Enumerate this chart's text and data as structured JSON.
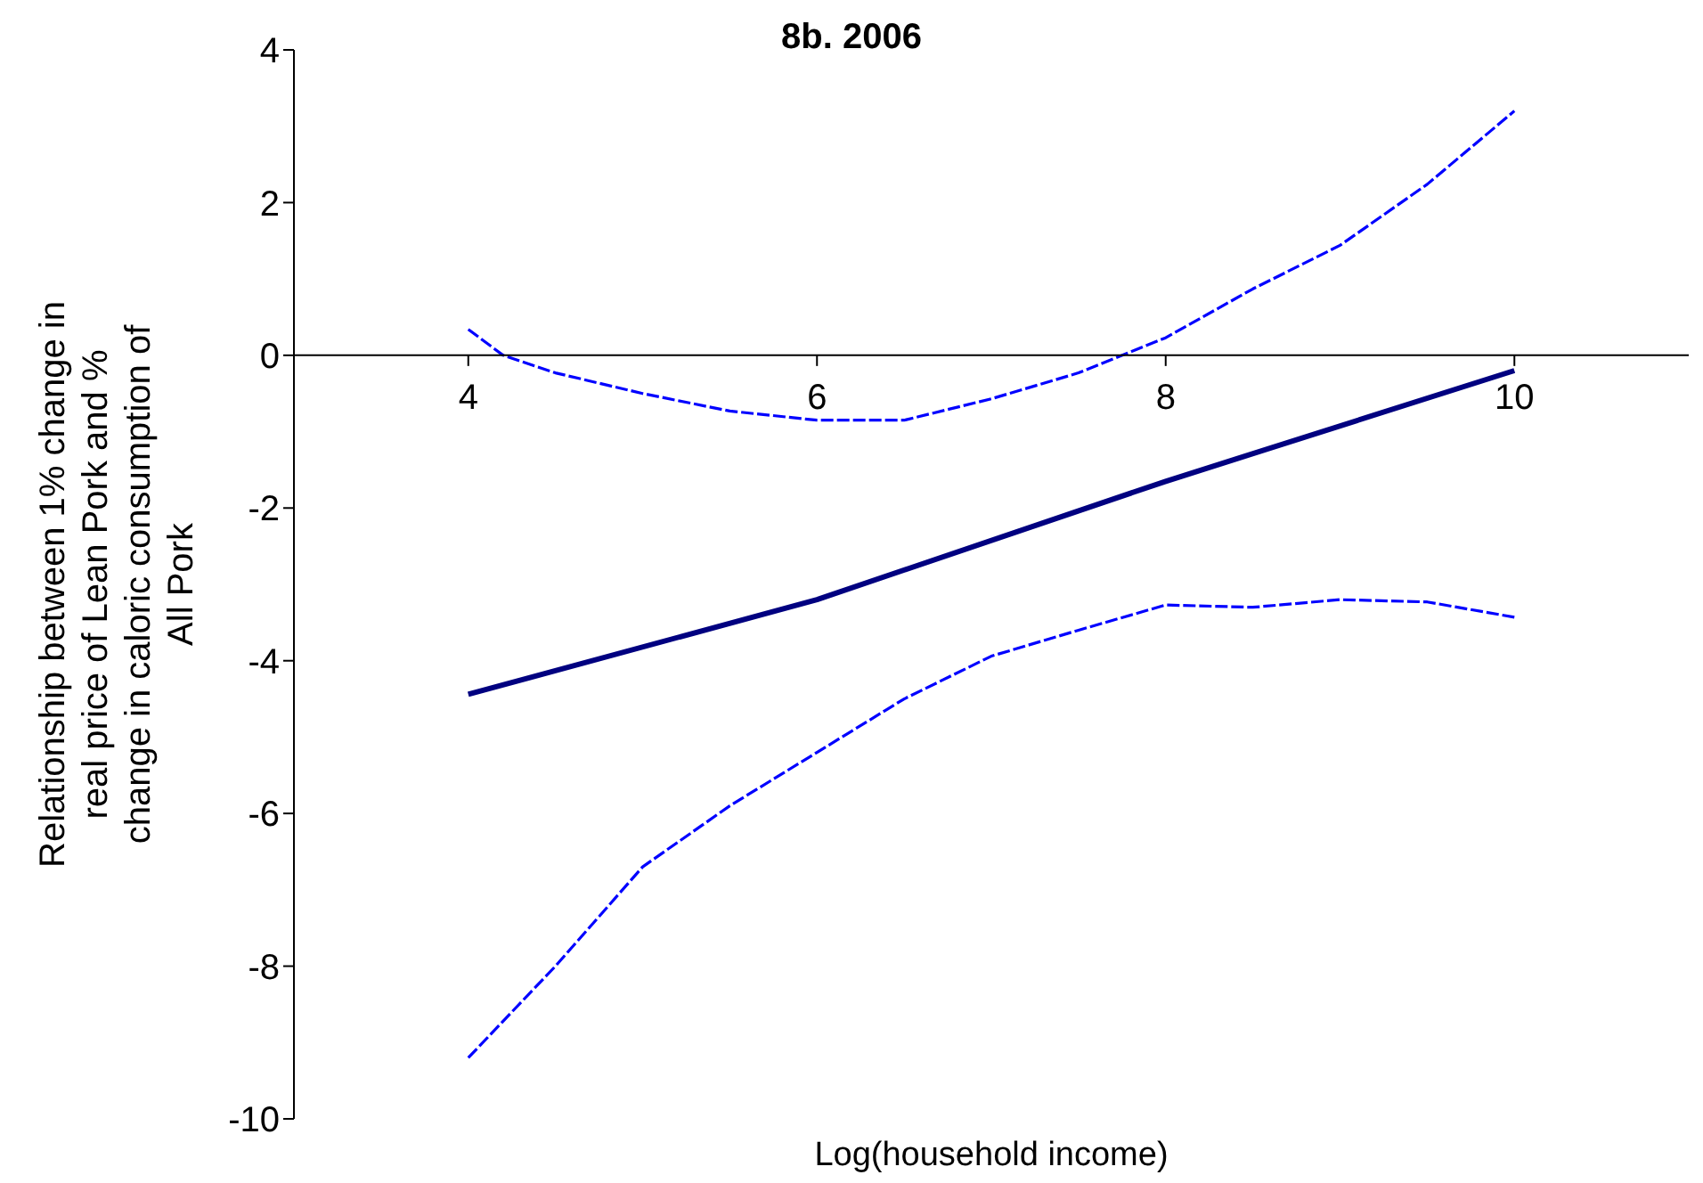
{
  "chart_data": {
    "type": "line",
    "title": "8b. 2006",
    "xlabel": "Log(household income)",
    "ylabel": "Relationship between 1% change in real price of Lean Pork and % change in caloric consumption of All Pork",
    "xlim": [
      3,
      11
    ],
    "xticks": [
      4,
      6,
      8,
      10
    ],
    "ylim": [
      -10,
      4
    ],
    "yticks": [
      -10,
      -8,
      -6,
      -4,
      -2,
      0,
      2,
      4
    ],
    "grid": false,
    "legend": false,
    "marker": "none",
    "series": [
      {
        "color": "#000080",
        "line_style": "solid",
        "x": [
          4,
          6,
          8,
          10
        ],
        "values": [
          -4.44,
          -3.2,
          -1.65,
          -0.2
        ]
      },
      {
        "color": "#0000ff",
        "line_style": "dashed",
        "x": [
          4,
          4.2,
          4.5,
          5,
          5.5,
          6,
          6.5,
          7,
          7.5,
          8,
          8.5,
          9,
          9.5,
          10
        ],
        "values": [
          0.34,
          0,
          -0.23,
          -0.5,
          -0.73,
          -0.85,
          -0.85,
          -0.57,
          -0.23,
          0.23,
          0.87,
          1.44,
          2.24,
          3.2
        ]
      },
      {
        "color": "#0000ff",
        "line_style": "dashed",
        "x": [
          4,
          4.5,
          5,
          5.5,
          6,
          6.5,
          7,
          7.5,
          8,
          8.5,
          9,
          9.5,
          10
        ],
        "values": [
          -9.2,
          -8.0,
          -6.7,
          -5.9,
          -5.2,
          -4.5,
          -3.94,
          -3.6,
          -3.27,
          -3.3,
          -3.2,
          -3.23,
          -3.43
        ]
      }
    ]
  }
}
